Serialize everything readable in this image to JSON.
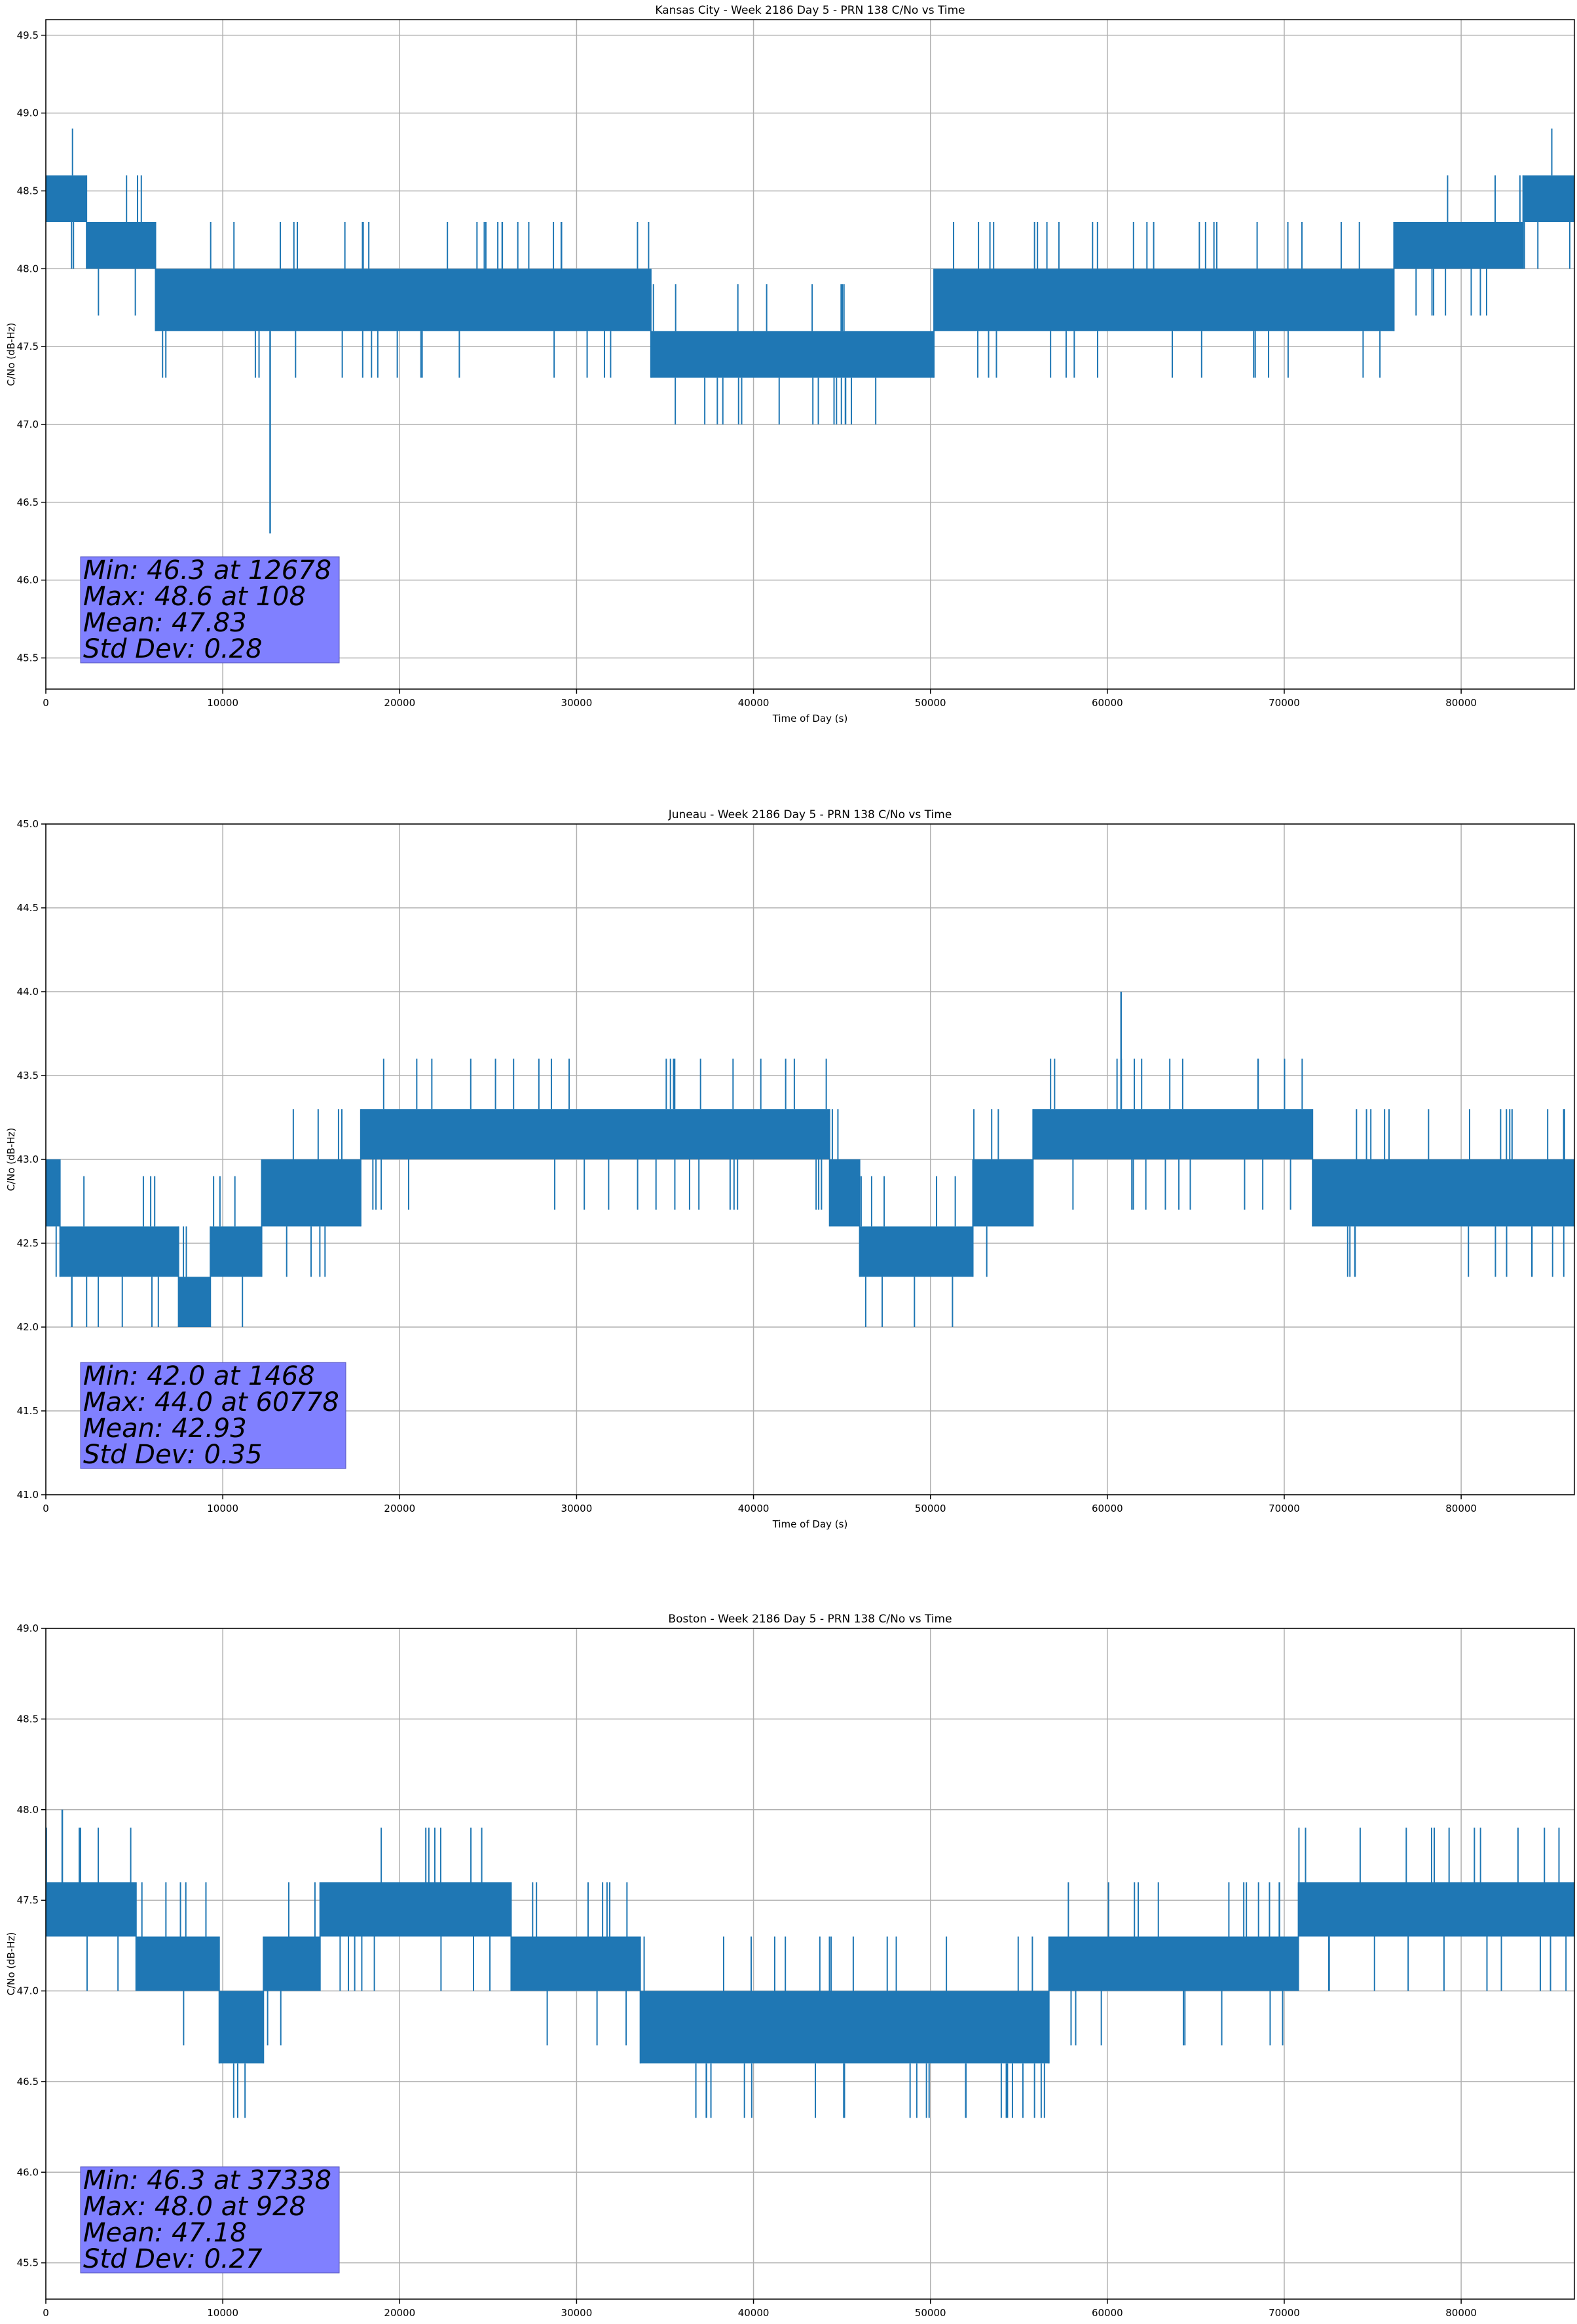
{
  "chart_data": [
    {
      "type": "line",
      "title": "Kansas City - Week 2186 Day 5 - PRN 138 C/No vs Time",
      "xlabel": "Time of Day (s)",
      "ylabel": "C/No (dB-Hz)",
      "xlim": [
        0,
        86400
      ],
      "ylim": [
        45.3,
        49.6
      ],
      "xticks": [
        0,
        10000,
        20000,
        30000,
        40000,
        50000,
        60000,
        70000,
        80000
      ],
      "xtick_labels": [
        "0",
        "10000",
        "20000",
        "30000",
        "40000",
        "50000",
        "60000",
        "70000",
        "80000"
      ],
      "yticks": [
        45.5,
        46.0,
        46.5,
        47.0,
        47.5,
        48.0,
        48.5,
        49.0,
        49.5
      ],
      "ytick_labels": [
        "45.5",
        "46.0",
        "46.5",
        "47.0",
        "47.5",
        "48.0",
        "48.5",
        "49.0",
        "49.5"
      ],
      "grid": true,
      "color": "#1f77b4",
      "series": [
        {
          "values_desc": "C/No band segments [x_start, x_end, low, high]",
          "bands": [
            [
              0,
              2300,
              48.3,
              48.6
            ],
            [
              2300,
              6200,
              48.0,
              48.3
            ],
            [
              6200,
              34200,
              47.6,
              48.0
            ],
            [
              34200,
              50200,
              47.3,
              47.6
            ],
            [
              50200,
              76200,
              47.6,
              48.0
            ],
            [
              76200,
              83500,
              48.0,
              48.3
            ],
            [
              83500,
              86400,
              48.3,
              48.6
            ]
          ],
          "spikes": [
            [
              12678,
              46.3
            ],
            [
              45200,
              47.0
            ],
            [
              108,
              48.6
            ]
          ]
        }
      ],
      "annotation": {
        "lines": [
          "Min: 46.3 at 12678",
          "Max: 48.6 at 108",
          "Mean: 47.83",
          "Std Dev: 0.28"
        ],
        "box_color": "#8080ff",
        "placement": "bottom-left"
      }
    },
    {
      "type": "line",
      "title": "Juneau - Week 2186 Day 5 - PRN 138 C/No vs Time",
      "xlabel": "Time of Day (s)",
      "ylabel": "C/No (dB-Hz)",
      "xlim": [
        0,
        86400
      ],
      "ylim": [
        41.0,
        45.0
      ],
      "xticks": [
        0,
        10000,
        20000,
        30000,
        40000,
        50000,
        60000,
        70000,
        80000
      ],
      "xtick_labels": [
        "0",
        "10000",
        "20000",
        "30000",
        "40000",
        "50000",
        "60000",
        "70000",
        "80000"
      ],
      "yticks": [
        41.0,
        41.5,
        42.0,
        42.5,
        43.0,
        43.5,
        44.0,
        44.5,
        45.0
      ],
      "ytick_labels": [
        "41.0",
        "41.5",
        "42.0",
        "42.5",
        "43.0",
        "43.5",
        "44.0",
        "44.5",
        "45.0"
      ],
      "grid": true,
      "color": "#1f77b4",
      "series": [
        {
          "values_desc": "C/No band segments [x_start, x_end, low, high]",
          "bands": [
            [
              0,
              800,
              42.6,
              43.0
            ],
            [
              800,
              7500,
              42.3,
              42.6
            ],
            [
              7500,
              9300,
              42.0,
              42.3
            ],
            [
              9300,
              12200,
              42.3,
              42.6
            ],
            [
              12200,
              17800,
              42.6,
              43.0
            ],
            [
              17800,
              44300,
              43.0,
              43.3
            ],
            [
              44300,
              46000,
              42.6,
              43.0
            ],
            [
              46000,
              52400,
              42.3,
              42.6
            ],
            [
              52400,
              55800,
              42.6,
              43.0
            ],
            [
              55800,
              71600,
              43.0,
              43.3
            ],
            [
              71600,
              86400,
              42.6,
              43.0
            ]
          ],
          "spikes": [
            [
              60778,
              44.0
            ],
            [
              1468,
              42.0
            ],
            [
              74000,
              42.3
            ],
            [
              84000,
              42.3
            ]
          ]
        }
      ],
      "annotation": {
        "lines": [
          "Min: 42.0 at 1468",
          "Max: 44.0 at 60778",
          "Mean: 42.93",
          "Std Dev: 0.35"
        ],
        "box_color": "#8080ff",
        "placement": "bottom-left"
      }
    },
    {
      "type": "line",
      "title": "Boston - Week 2186 Day 5 - PRN 138 C/No vs Time",
      "xlabel": "Time of Day (s)",
      "ylabel": "C/No (dB-Hz)",
      "xlim": [
        0,
        86400
      ],
      "ylim": [
        45.3,
        49.0
      ],
      "xticks": [
        0,
        10000,
        20000,
        30000,
        40000,
        50000,
        60000,
        70000,
        80000
      ],
      "xtick_labels": [
        "0",
        "10000",
        "20000",
        "30000",
        "40000",
        "50000",
        "60000",
        "70000",
        "80000"
      ],
      "yticks": [
        45.5,
        46.0,
        46.5,
        47.0,
        47.5,
        48.0,
        48.5,
        49.0
      ],
      "ytick_labels": [
        "45.5",
        "46.0",
        "46.5",
        "47.0",
        "47.5",
        "48.0",
        "48.5",
        "49.0"
      ],
      "grid": true,
      "color": "#1f77b4",
      "series": [
        {
          "values_desc": "C/No band segments [x_start, x_end, low, high]",
          "bands": [
            [
              0,
              5100,
              47.3,
              47.6
            ],
            [
              5100,
              9800,
              47.0,
              47.3
            ],
            [
              9800,
              12300,
              46.6,
              47.0
            ],
            [
              12300,
              15500,
              47.0,
              47.3
            ],
            [
              15500,
              26300,
              47.3,
              47.6
            ],
            [
              26300,
              33600,
              47.0,
              47.3
            ],
            [
              33600,
              56700,
              46.6,
              47.0
            ],
            [
              56700,
              70800,
              47.0,
              47.3
            ],
            [
              70800,
              86400,
              47.3,
              47.6
            ]
          ],
          "spikes": [
            [
              928,
              48.0
            ],
            [
              37338,
              46.3
            ],
            [
              52000,
              46.3
            ]
          ]
        }
      ],
      "annotation": {
        "lines": [
          "Min: 46.3 at 37338",
          "Max: 48.0 at 928",
          "Mean: 47.18",
          "Std Dev: 0.27"
        ],
        "box_color": "#8080ff",
        "placement": "bottom-left"
      }
    }
  ]
}
